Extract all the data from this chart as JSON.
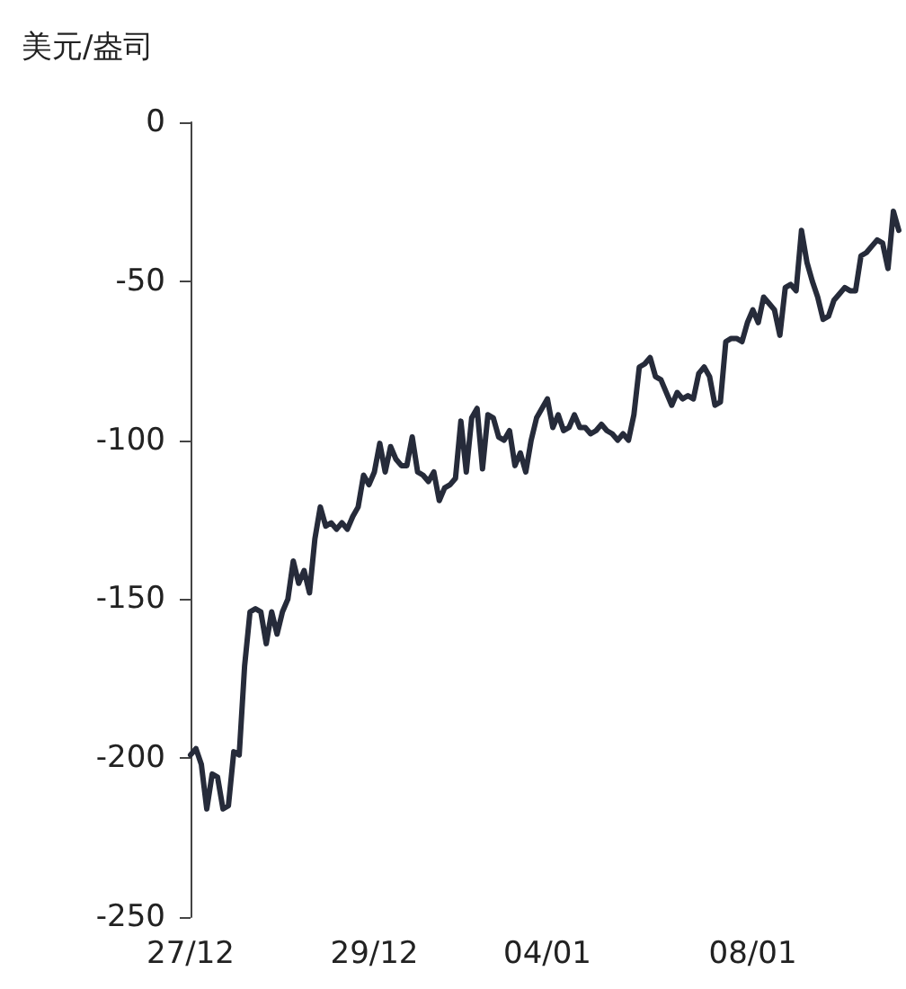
{
  "chart_data": {
    "type": "line",
    "ylabel": "美元/盎司",
    "categories": [
      "27/12",
      null,
      null,
      null,
      null,
      null,
      null,
      null,
      null,
      null,
      null,
      null,
      null,
      null,
      null,
      null,
      null,
      null,
      null,
      null,
      null,
      null,
      null,
      null,
      null,
      null,
      null,
      null,
      null,
      null,
      null,
      null,
      null,
      null,
      "29/12",
      null,
      null,
      null,
      null,
      null,
      null,
      null,
      null,
      null,
      null,
      null,
      null,
      null,
      null,
      null,
      null,
      null,
      null,
      null,
      null,
      null,
      null,
      null,
      null,
      null,
      null,
      null,
      null,
      null,
      null,
      null,
      "04/01",
      null,
      null,
      null,
      null,
      null,
      null,
      null,
      null,
      null,
      null,
      null,
      null,
      null,
      null,
      null,
      null,
      null,
      null,
      null,
      null,
      null,
      null,
      null,
      null,
      null,
      null,
      null,
      null,
      null,
      null,
      null,
      null,
      null,
      null,
      null,
      null,
      null,
      "08/01",
      null,
      null,
      null,
      null,
      null,
      null,
      null,
      null,
      null,
      null,
      null,
      null,
      null,
      null,
      null,
      null,
      null,
      null,
      null,
      null,
      null,
      null,
      null,
      null,
      null,
      null,
      null
    ],
    "series": [
      {
        "color": "#262b3a",
        "values": [
          -199,
          -197,
          -202,
          -216,
          -205,
          -206,
          -216,
          -215,
          -198,
          -199,
          -171,
          -154,
          -153,
          -154,
          -164,
          -154,
          -161,
          -154,
          -150,
          -138,
          -145,
          -141,
          -148,
          -131,
          -121,
          -127,
          -126,
          -128,
          -126,
          -128,
          -124,
          -121,
          -111,
          -114,
          -110,
          -101,
          -110,
          -102,
          -106,
          -108,
          -108,
          -99,
          -110,
          -111,
          -113,
          -110,
          -119,
          -115,
          -114,
          -112,
          -94,
          -110,
          -93,
          -90,
          -109,
          -92,
          -93,
          -99,
          -100,
          -97,
          -108,
          -104,
          -110,
          -100,
          -93,
          -90,
          -87,
          -96,
          -92,
          -97,
          -96,
          -92,
          -96,
          -96,
          -98,
          -97,
          -95,
          -97,
          -98,
          -100,
          -98,
          -100,
          -92,
          -77,
          -76,
          -74,
          -80,
          -81,
          -85,
          -89,
          -85,
          -87,
          -86,
          -87,
          -79,
          -77,
          -80,
          -89,
          -88,
          -69,
          -68,
          -68,
          -69,
          -63,
          -59,
          -63,
          -55,
          -57,
          -59,
          -67,
          -52,
          -51,
          -53,
          -34,
          -44,
          -50,
          -55,
          -62,
          -61,
          -56,
          -54,
          -52,
          -53,
          -53,
          -42,
          -41,
          -39,
          -37,
          -38,
          -46,
          -28,
          -34
        ]
      }
    ],
    "ylim": [
      -250,
      0
    ],
    "yticks": [
      -250,
      -200,
      -150,
      -100,
      -50,
      0
    ],
    "grid": false,
    "marker": "none",
    "line_style": "solid"
  }
}
